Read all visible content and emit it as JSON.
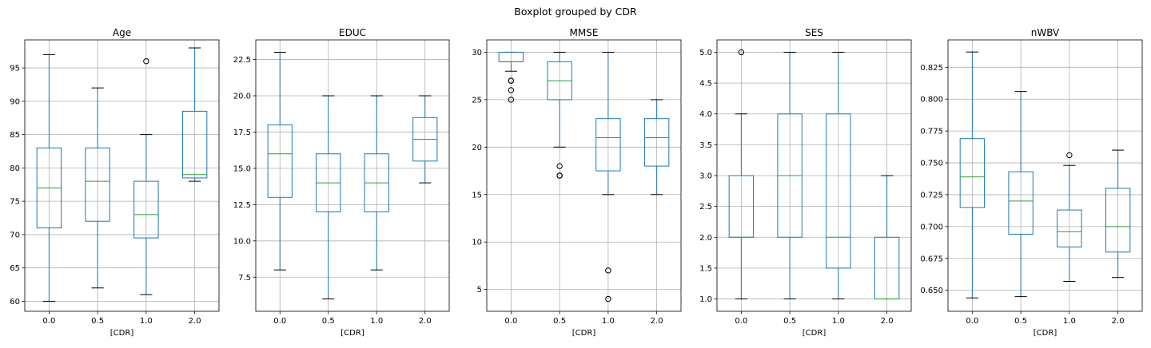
{
  "figure": {
    "suptitle": "Boxplot grouped by CDR"
  },
  "colors": {
    "box": "#1f77b4",
    "median": "#2ca02c",
    "grid": "#b0b0b0",
    "axis": "#000000",
    "flier": "#000000"
  },
  "chart_data": [
    {
      "type": "box",
      "title": "Age",
      "xlabel": "[CDR]",
      "ylabel": "",
      "categories": [
        "0.0",
        "0.5",
        "1.0",
        "2.0"
      ],
      "ylim": [
        58.5,
        99.2
      ],
      "yticks": [
        60,
        65,
        70,
        75,
        80,
        85,
        90,
        95
      ],
      "ytick_labels": [
        "60",
        "65",
        "70",
        "75",
        "80",
        "85",
        "90",
        "95"
      ],
      "grid": true,
      "boxes": [
        {
          "whislo": 60,
          "q1": 71,
          "med": 77,
          "q3": 83,
          "whishi": 97,
          "fliers": []
        },
        {
          "whislo": 62,
          "q1": 72,
          "med": 78,
          "q3": 83,
          "whishi": 92,
          "fliers": []
        },
        {
          "whislo": 61,
          "q1": 69.5,
          "med": 73,
          "q3": 78,
          "whishi": 85,
          "fliers": [
            96
          ]
        },
        {
          "whislo": 78,
          "q1": 78.5,
          "med": 79,
          "q3": 88.5,
          "whishi": 98,
          "fliers": []
        }
      ]
    },
    {
      "type": "box",
      "title": "EDUC",
      "xlabel": "[CDR]",
      "ylabel": "",
      "categories": [
        "0.0",
        "0.5",
        "1.0",
        "2.0"
      ],
      "ylim": [
        5.15,
        23.85
      ],
      "yticks": [
        7.5,
        10,
        12.5,
        15,
        17.5,
        20,
        22.5
      ],
      "ytick_labels": [
        "7.5",
        "10.0",
        "12.5",
        "15.0",
        "17.5",
        "20.0",
        "22.5"
      ],
      "grid": true,
      "boxes": [
        {
          "whislo": 8,
          "q1": 13,
          "med": 16,
          "q3": 18,
          "whishi": 23,
          "fliers": []
        },
        {
          "whislo": 6,
          "q1": 12,
          "med": 14,
          "q3": 16,
          "whishi": 20,
          "fliers": []
        },
        {
          "whislo": 8,
          "q1": 12,
          "med": 14,
          "q3": 16,
          "whishi": 20,
          "fliers": []
        },
        {
          "whislo": 14,
          "q1": 15.5,
          "med": 17,
          "q3": 18.5,
          "whishi": 20,
          "fliers": []
        }
      ]
    },
    {
      "type": "box",
      "title": "MMSE",
      "xlabel": "[CDR]",
      "ylabel": "",
      "categories": [
        "0.0",
        "0.5",
        "1.0",
        "2.0"
      ],
      "ylim": [
        2.7,
        31.3
      ],
      "yticks": [
        5,
        10,
        15,
        20,
        25,
        30
      ],
      "ytick_labels": [
        "5",
        "10",
        "15",
        "20",
        "25",
        "30"
      ],
      "grid": true,
      "boxes": [
        {
          "whislo": 28,
          "q1": 29,
          "med": 29,
          "q3": 30,
          "whishi": 30,
          "fliers": [
            27,
            27,
            26,
            25
          ]
        },
        {
          "whislo": 20,
          "q1": 25,
          "med": 27,
          "q3": 29,
          "whishi": 30,
          "fliers": [
            18,
            17,
            17
          ]
        },
        {
          "whislo": 15,
          "q1": 17.5,
          "med": 21,
          "q3": 23,
          "whishi": 30,
          "fliers": [
            7,
            4
          ]
        },
        {
          "whislo": 15,
          "q1": 18,
          "med": 21,
          "q3": 23,
          "whishi": 25,
          "fliers": []
        }
      ]
    },
    {
      "type": "box",
      "title": "SES",
      "xlabel": "[CDR]",
      "ylabel": "",
      "categories": [
        "0.0",
        "0.5",
        "1.0",
        "2.0"
      ],
      "ylim": [
        0.8,
        5.2
      ],
      "yticks": [
        1,
        1.5,
        2,
        2.5,
        3,
        3.5,
        4,
        4.5,
        5
      ],
      "ytick_labels": [
        "1.0",
        "1.5",
        "2.0",
        "2.5",
        "3.0",
        "3.5",
        "4.0",
        "4.5",
        "5.0"
      ],
      "grid": true,
      "boxes": [
        {
          "whislo": 1,
          "q1": 2,
          "med": 2,
          "q3": 3,
          "whishi": 4,
          "fliers": [
            5
          ]
        },
        {
          "whislo": 1,
          "q1": 2,
          "med": 3,
          "q3": 4,
          "whishi": 5,
          "fliers": []
        },
        {
          "whislo": 1,
          "q1": 1.5,
          "med": 2,
          "q3": 4,
          "whishi": 5,
          "fliers": []
        },
        {
          "whislo": 1,
          "q1": 1,
          "med": 1,
          "q3": 2,
          "whishi": 3,
          "fliers": []
        }
      ]
    },
    {
      "type": "box",
      "title": "nWBV",
      "xlabel": "[CDR]",
      "ylabel": "",
      "categories": [
        "0.0",
        "0.5",
        "1.0",
        "2.0"
      ],
      "ylim": [
        0.6335,
        0.8465
      ],
      "yticks": [
        0.65,
        0.675,
        0.7,
        0.725,
        0.75,
        0.775,
        0.8,
        0.825
      ],
      "ytick_labels": [
        "0.650",
        "0.675",
        "0.700",
        "0.725",
        "0.750",
        "0.775",
        "0.800",
        "0.825"
      ],
      "grid": true,
      "boxes": [
        {
          "whislo": 0.644,
          "q1": 0.715,
          "med": 0.739,
          "q3": 0.769,
          "whishi": 0.837,
          "fliers": []
        },
        {
          "whislo": 0.645,
          "q1": 0.694,
          "med": 0.72,
          "q3": 0.743,
          "whishi": 0.806,
          "fliers": []
        },
        {
          "whislo": 0.657,
          "q1": 0.684,
          "med": 0.696,
          "q3": 0.713,
          "whishi": 0.748,
          "fliers": [
            0.756
          ]
        },
        {
          "whislo": 0.66,
          "q1": 0.68,
          "med": 0.7,
          "q3": 0.73,
          "whishi": 0.76,
          "fliers": []
        }
      ]
    }
  ]
}
